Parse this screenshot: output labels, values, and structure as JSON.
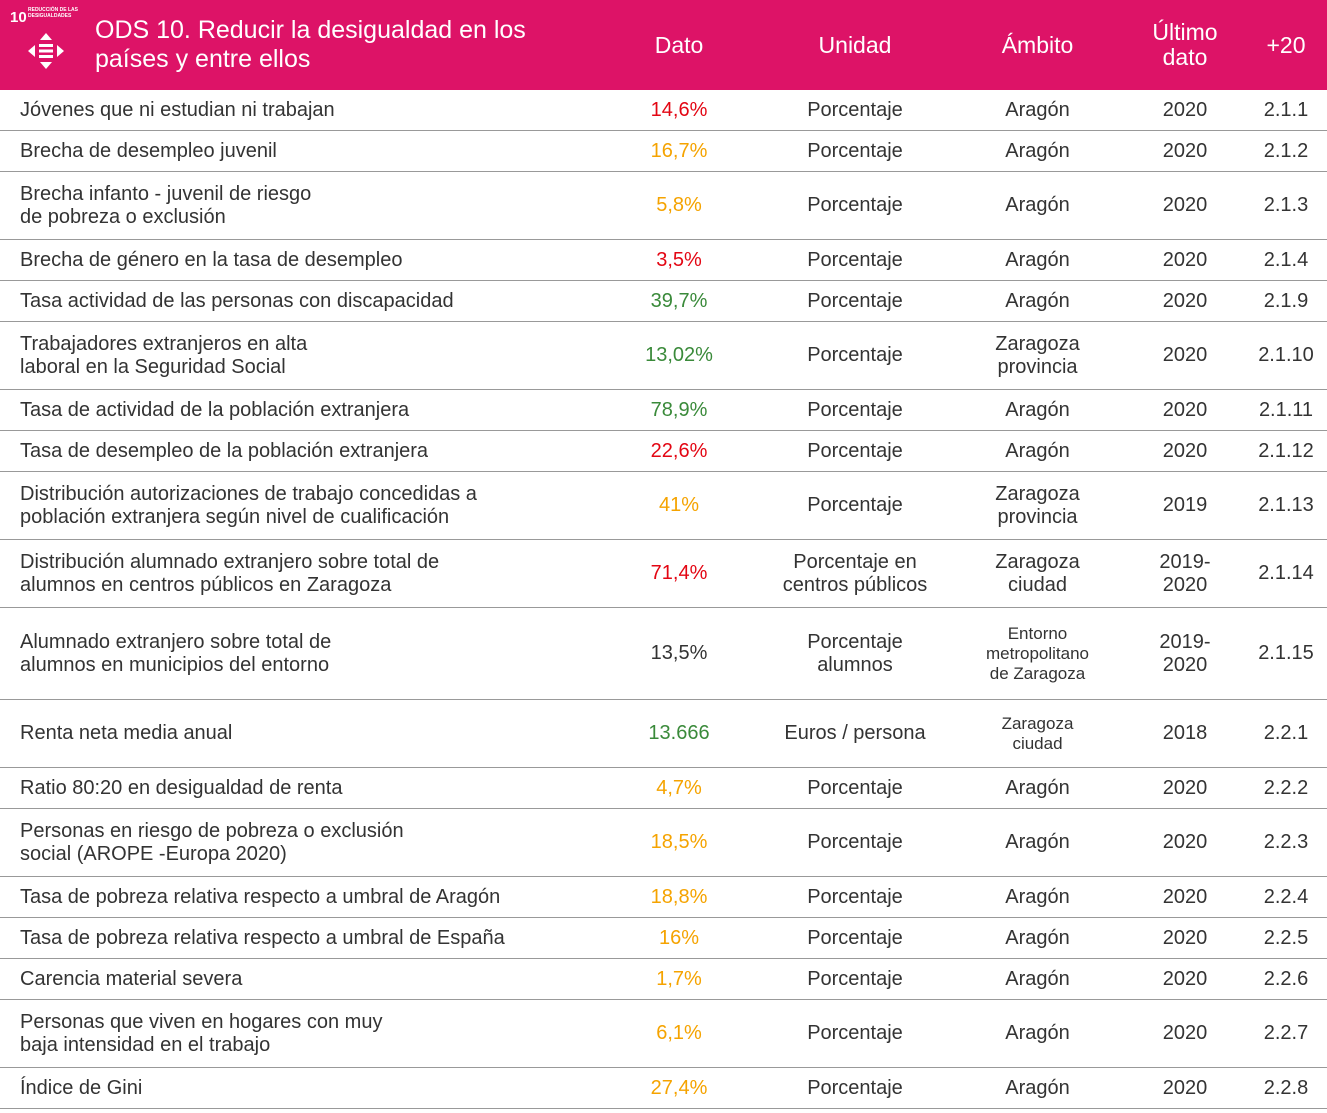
{
  "header": {
    "icon_number": "10",
    "icon_caption": "REDUCCIÓN DE LAS\nDESIGUALDADES",
    "title": "ODS 10. Reducir la desigualdad en los\npaíses y entre ellos",
    "columns": [
      "Dato",
      "Unidad",
      "Ámbito",
      "Último\ndato",
      "+20"
    ]
  },
  "table": {
    "rows": [
      {
        "indicador": "Jóvenes que ni estudian ni trabajan",
        "dato": "14,6%",
        "color": "#e30613",
        "unidad": "Porcentaje",
        "ambito": "Aragón",
        "ultimo": "2020",
        "ref": "2.1.1"
      },
      {
        "indicador": "Brecha de desempleo juvenil",
        "dato": "16,7%",
        "color": "#f5a300",
        "unidad": "Porcentaje",
        "ambito": "Aragón",
        "ultimo": "2020",
        "ref": "2.1.2"
      },
      {
        "indicador": "Brecha infanto - juvenil de riesgo\nde pobreza o exclusión",
        "dato": "5,8%",
        "color": "#f5a300",
        "unidad": "Porcentaje",
        "ambito": "Aragón",
        "ultimo": "2020",
        "ref": "2.1.3"
      },
      {
        "indicador": "Brecha de género en la tasa de desempleo",
        "dato": "3,5%",
        "color": "#e30613",
        "unidad": "Porcentaje",
        "ambito": "Aragón",
        "ultimo": "2020",
        "ref": "2.1.4"
      },
      {
        "indicador": "Tasa actividad de las personas con discapacidad",
        "dato": "39,7%",
        "color": "#3a8a3a",
        "unidad": "Porcentaje",
        "ambito": "Aragón",
        "ultimo": "2020",
        "ref": "2.1.9"
      },
      {
        "indicador": "Trabajadores extranjeros en alta\nlaboral en la Seguridad Social",
        "dato": "13,02%",
        "color": "#3a8a3a",
        "unidad": "Porcentaje",
        "ambito": "Zaragoza\nprovincia",
        "ultimo": "2020",
        "ref": "2.1.10"
      },
      {
        "indicador": "Tasa de actividad de la población extranjera",
        "dato": "78,9%",
        "color": "#3a8a3a",
        "unidad": "Porcentaje",
        "ambito": "Aragón",
        "ultimo": "2020",
        "ref": "2.1.11"
      },
      {
        "indicador": "Tasa de desempleo de la población extranjera",
        "dato": "22,6%",
        "color": "#e30613",
        "unidad": "Porcentaje",
        "ambito": "Aragón",
        "ultimo": "2020",
        "ref": "2.1.12"
      },
      {
        "indicador": "Distribución autorizaciones de trabajo concedidas a\npoblación extranjera según nivel de cualificación",
        "dato": "41%",
        "color": "#f5a300",
        "unidad": "Porcentaje",
        "ambito": "Zaragoza\nprovincia",
        "ultimo": "2019",
        "ref": "2.1.13"
      },
      {
        "indicador": "Distribución alumnado extranjero sobre total de\nalumnos en centros públicos en Zaragoza",
        "dato": "71,4%",
        "color": "#e30613",
        "unidad": "Porcentaje en\ncentros públicos",
        "ambito": "Zaragoza\nciudad",
        "ultimo": "2019-\n2020",
        "ref": "2.1.14"
      },
      {
        "indicador": "Alumnado extranjero sobre total de\nalumnos en municipios del entorno",
        "dato": "13,5%",
        "color": "#333333",
        "unidad": "Porcentaje\nalumnos",
        "ambito": "Entorno\nmetropolitano\nde Zaragoza",
        "ultimo": "2019-\n2020",
        "ref": "2.1.15"
      },
      {
        "indicador": "Renta neta media anual",
        "dato": "13.666",
        "color": "#3a8a3a",
        "unidad": "Euros / persona",
        "ambito": "Zaragoza\nciudad",
        "ultimo": "2018",
        "ref": "2.2.1"
      },
      {
        "indicador": "Ratio 80:20 en desigualdad de renta",
        "dato": "4,7%",
        "color": "#f5a300",
        "unidad": "Porcentaje",
        "ambito": "Aragón",
        "ultimo": "2020",
        "ref": "2.2.2"
      },
      {
        "indicador": "Personas en riesgo de pobreza o exclusión\nsocial (AROPE -Europa 2020)",
        "dato": "18,5%",
        "color": "#f5a300",
        "unidad": "Porcentaje",
        "ambito": "Aragón",
        "ultimo": "2020",
        "ref": "2.2.3"
      },
      {
        "indicador": "Tasa de pobreza relativa respecto a umbral de Aragón",
        "dato": "18,8%",
        "color": "#f5a300",
        "unidad": "Porcentaje",
        "ambito": "Aragón",
        "ultimo": "2020",
        "ref": "2.2.4"
      },
      {
        "indicador": "Tasa de pobreza relativa respecto a umbral de España",
        "dato": "16%",
        "color": "#f5a300",
        "unidad": "Porcentaje",
        "ambito": "Aragón",
        "ultimo": "2020",
        "ref": "2.2.5"
      },
      {
        "indicador": "Carencia material severa",
        "dato": "1,7%",
        "color": "#f5a300",
        "unidad": "Porcentaje",
        "ambito": "Aragón",
        "ultimo": "2020",
        "ref": "2.2.6"
      },
      {
        "indicador": "Personas que viven en hogares con muy\nbaja intensidad en el trabajo",
        "dato": "6,1%",
        "color": "#f5a300",
        "unidad": "Porcentaje",
        "ambito": "Aragón",
        "ultimo": "2020",
        "ref": "2.2.7"
      },
      {
        "indicador": "Índice de Gini",
        "dato": "27,4%",
        "color": "#f5a300",
        "unidad": "Porcentaje",
        "ambito": "Aragón",
        "ultimo": "2020",
        "ref": "2.2.8"
      }
    ]
  }
}
